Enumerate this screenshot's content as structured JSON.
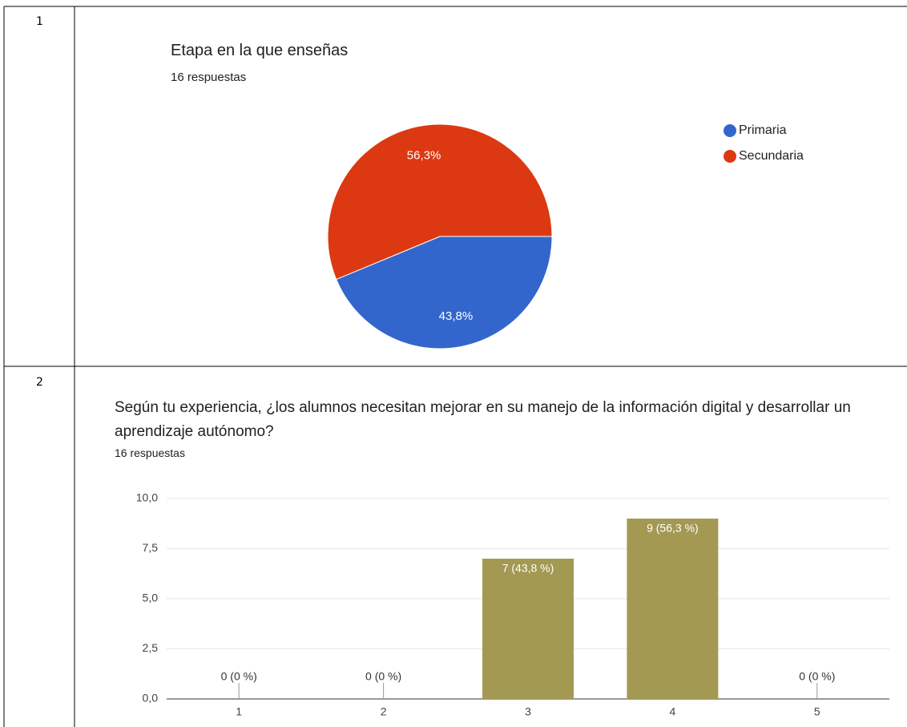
{
  "table": {
    "rows": [
      {
        "number": "1"
      },
      {
        "number": "2"
      }
    ]
  },
  "chart_data": [
    {
      "type": "pie",
      "title": "Etapa en la que enseñas",
      "subtitle": "16 respuestas",
      "categories": [
        "Primaria",
        "Secundaria"
      ],
      "values": [
        43.8,
        56.3
      ],
      "value_labels": [
        "43,8%",
        "56,3%"
      ],
      "colors": [
        "#3366cc",
        "#dc3912"
      ],
      "legend": "right"
    },
    {
      "type": "bar",
      "title": "Según tu experiencia, ¿los alumnos necesitan mejorar en su manejo de la información digital y desarrollar un aprendizaje autónomo?",
      "subtitle": "16 respuestas",
      "categories": [
        "1",
        "2",
        "3",
        "4",
        "5"
      ],
      "values": [
        0,
        0,
        7,
        9,
        0
      ],
      "value_labels": [
        "0 (0 %)",
        "0 (0 %)",
        "7 (43,8 %)",
        "9 (56,3 %)",
        "0 (0 %)"
      ],
      "color": "#a39953",
      "ylim": [
        0,
        10
      ],
      "yticks": [
        {
          "value": 0,
          "label": "0,0"
        },
        {
          "value": 2.5,
          "label": "2,5"
        },
        {
          "value": 5,
          "label": "5,0"
        },
        {
          "value": 7.5,
          "label": "7,5"
        },
        {
          "value": 10,
          "label": "10,0"
        }
      ],
      "grid": true
    }
  ]
}
